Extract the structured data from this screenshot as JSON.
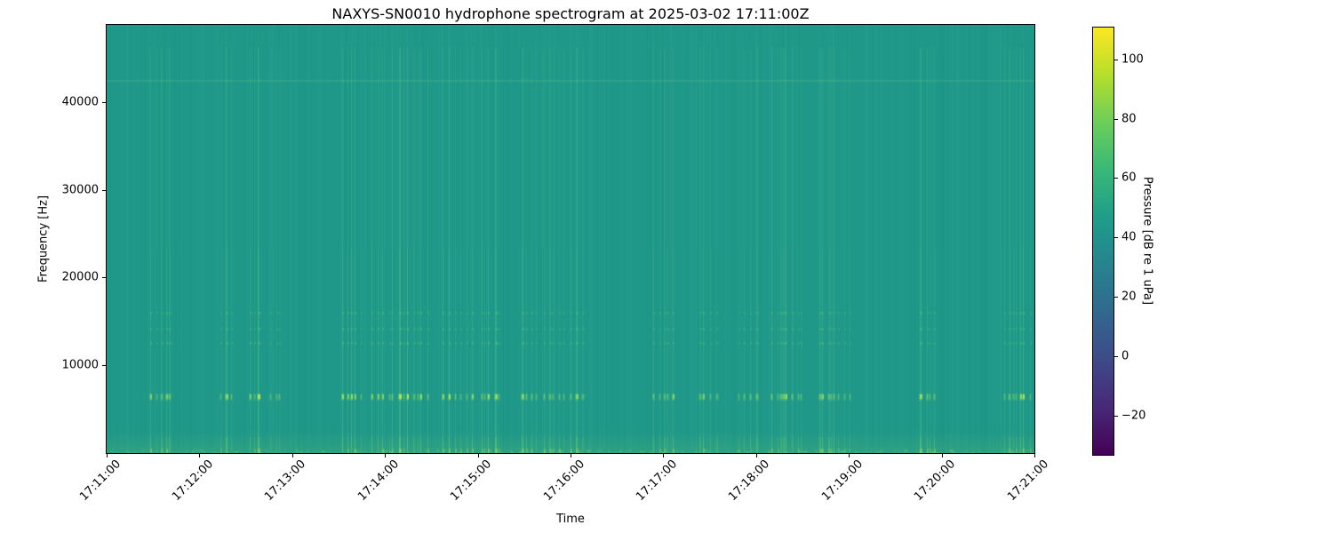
{
  "chart_data": {
    "type": "heatmap",
    "subtype": "spectrogram",
    "title": "NAXYS-SN0010 hydrophone spectrogram at 2025-03-02 17:11:00Z",
    "xlabel": "Time",
    "ylabel": "Frequency [Hz]",
    "x_ticks": [
      "17:11:00",
      "17:12:00",
      "17:13:00",
      "17:14:00",
      "17:15:00",
      "17:16:00",
      "17:17:00",
      "17:18:00",
      "17:19:00",
      "17:20:00",
      "17:21:00"
    ],
    "xlim": [
      "17:11:00",
      "17:21:00"
    ],
    "y_ticks": [
      10000,
      20000,
      30000,
      40000
    ],
    "ylim": [
      0,
      48800
    ],
    "grid": false,
    "colorbar": {
      "label": "Pressure [dB re 1 uPa]",
      "position": "right",
      "ticks": [
        100,
        80,
        60,
        40,
        20,
        0,
        -20
      ],
      "tick_labels": [
        "100",
        "80",
        "60",
        "40",
        "20",
        "0",
        "−20"
      ],
      "clim": [
        -33,
        111
      ],
      "colormap": "viridis",
      "colormap_stops": [
        "#440154",
        "#482878",
        "#3e4a89",
        "#31688e",
        "#26838f",
        "#1f9d8a",
        "#38b977",
        "#6cce5a",
        "#b6de2b",
        "#fde725"
      ]
    },
    "features": {
      "background_level_db": 46,
      "horizontal_bands_hz": [
        6600,
        12600,
        14200,
        16000,
        42500
      ],
      "low_frequency_energy_hz": [
        0,
        1600
      ],
      "transients": "dense broadband vertical striations (impulsive clicks) throughout the 10-minute record, brightest near 6.6 kHz"
    },
    "render": {
      "seed": 1337,
      "bg_color": "#1f9889",
      "striation_rgb": [
        120,
        225,
        135
      ],
      "dash_rgb": [
        87,
        197,
        111
      ],
      "dash_bright_rgb": [
        190,
        232,
        70
      ],
      "low_band_rgb": [
        130,
        215,
        95
      ],
      "low_band_hot_rgb": [
        175,
        225,
        80
      ],
      "faint_band_rgba": "rgba(150,225,150,0.13)"
    }
  }
}
